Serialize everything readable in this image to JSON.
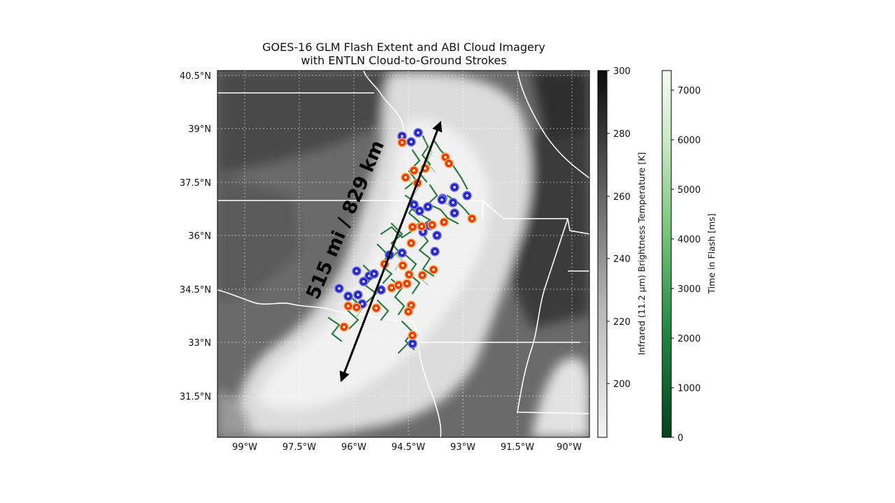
{
  "title": {
    "line1": "GOES-16 GLM Flash Extent and ABI Cloud Imagery",
    "line2": "with ENTLN Cloud-to-Ground Strokes"
  },
  "map": {
    "lat_labels": [
      "40.5°N",
      "39°N",
      "37.5°N",
      "36°N",
      "34.5°N",
      "33°N",
      "31.5°N"
    ],
    "lon_labels": [
      "99°W",
      "97.5°W",
      "96°W",
      "94.5°W",
      "93°W",
      "91.5°W",
      "90°W"
    ],
    "annotation": "515 mi / 829 km"
  },
  "colorbar_ir": {
    "label": "Infrared (11.2 μm) Brightness Temperature [K]",
    "ticks": [
      "300",
      "280",
      "260",
      "240",
      "220",
      "200"
    ],
    "colormap": [
      "#f4f4f4",
      "#0a0a0a"
    ]
  },
  "colorbar_time": {
    "label": "Time in Flash [ms]",
    "ticks": [
      "7000",
      "6000",
      "5000",
      "4000",
      "3000",
      "2000",
      "1000",
      "0"
    ],
    "colormap": [
      "#00441b",
      "#f7fcf5"
    ]
  },
  "colors": {
    "positive_stroke": "#e8391a",
    "negative_stroke": "#2626b8",
    "flash_extent": "#2e7a43",
    "borders": "#ffffff",
    "arrow": "#000000"
  }
}
